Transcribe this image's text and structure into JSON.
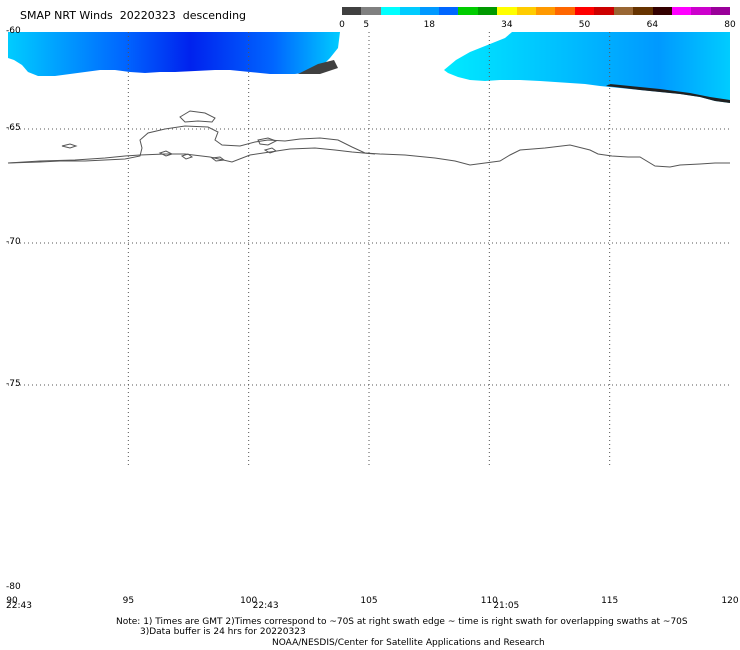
{
  "header": {
    "title": "SMAP NRT Winds  20220323  descending"
  },
  "colorbar": {
    "labels": [
      "0",
      "5",
      "18",
      "34",
      "50",
      "64",
      "80"
    ],
    "label_values": [
      0,
      5,
      18,
      34,
      50,
      64,
      80
    ],
    "range": [
      0,
      80
    ],
    "colors": [
      "#404040",
      "#808080",
      "#00ffff",
      "#00ccff",
      "#0099ff",
      "#0066ff",
      "#00cc00",
      "#009900",
      "#ffff00",
      "#ffcc00",
      "#ff9900",
      "#ff6600",
      "#ff0000",
      "#cc0000",
      "#996633",
      "#663300",
      "#330000",
      "#ff00ff",
      "#cc00cc",
      "#990099"
    ]
  },
  "map": {
    "lat_range": [
      -60,
      -80
    ],
    "lon_range": [
      90,
      120
    ],
    "lat_labels": [
      {
        "value": -60,
        "text": "-60"
      },
      {
        "value": -65,
        "text": "-65"
      },
      {
        "value": -70,
        "text": "-70"
      },
      {
        "value": -75,
        "text": "-75"
      },
      {
        "value": -80,
        "text": "-80"
      }
    ],
    "lon_labels": [
      {
        "value": 90,
        "text": "90"
      },
      {
        "value": 95,
        "text": "95"
      },
      {
        "value": 100,
        "text": "100"
      },
      {
        "value": 105,
        "text": "105"
      },
      {
        "value": 110,
        "text": "110"
      },
      {
        "value": 115,
        "text": "115"
      },
      {
        "value": 120,
        "text": "120"
      }
    ],
    "swath_times": [
      {
        "lon": 90,
        "text": "22:43"
      },
      {
        "lon": 100,
        "text": "22:43"
      },
      {
        "lon": 110,
        "text": "21:05"
      }
    ],
    "colors": {
      "coastline": "#555555",
      "grid": "#555555",
      "wind_cyan": "#00ccff",
      "wind_blue": "#0044ee",
      "wind_gray": "#404040"
    }
  },
  "notes": {
    "line1": "Note: 1) Times are GMT 2)Times correspond to ~70S at right swath edge ~ time is right swath for overlapping swaths at ~70S",
    "line2": "3)Data buffer is 24 hrs for 20220323",
    "line3": "NOAA/NESDIS/Center for Satellite Applications and Research"
  }
}
